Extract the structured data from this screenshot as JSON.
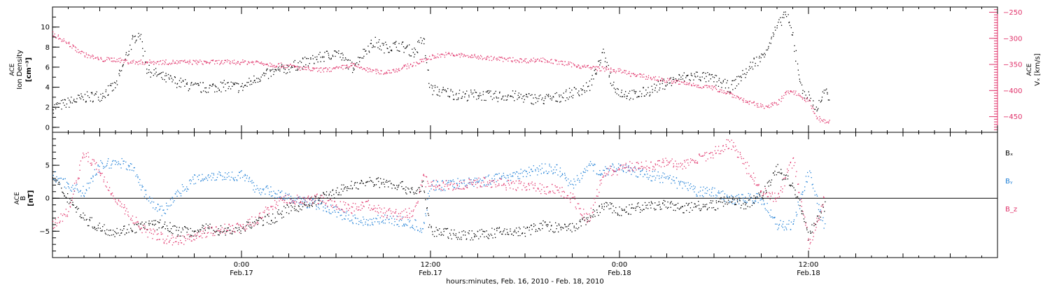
{
  "colors": {
    "black": "#000000",
    "blue": "#1f7fd6",
    "pink": "#e0326a"
  },
  "xaxis": {
    "title": "hours:minutes, Feb. 16, 2010 - Feb. 18, 2010",
    "ticks": [
      {
        "time": "0:00",
        "date": "Feb.17",
        "hour": 24
      },
      {
        "time": "12:00",
        "date": "Feb.17",
        "hour": 36
      },
      {
        "time": "0:00",
        "date": "Feb.18",
        "hour": 48
      },
      {
        "time": "12:00",
        "date": "Feb.18",
        "hour": 60
      }
    ]
  },
  "chart_data": [
    {
      "type": "scatter",
      "panel": "top",
      "ylabel_left": [
        "ACE",
        "Ion Density",
        "[cm⁻³]"
      ],
      "ylabel_right": [
        "ACE",
        "Vₓ [km/s]"
      ],
      "x_range_hours": [
        12,
        72
      ],
      "ylim_left": [
        -0.5,
        12
      ],
      "ylim_right": [
        -480,
        -240
      ],
      "yticks_left": [
        "0",
        "2",
        "4",
        "6",
        "8",
        "10"
      ],
      "yticks_right": [
        "-250",
        "-300",
        "-350",
        "-400",
        "-450"
      ],
      "series": [
        {
          "label": "Ion Density",
          "axis": "left",
          "color": "black",
          "x": [
            12,
            13,
            14,
            15,
            16,
            17,
            17.5,
            18,
            19,
            20,
            21,
            22,
            23,
            24,
            25,
            26,
            27,
            28,
            29,
            30,
            31,
            32,
            32.5,
            33,
            34,
            35,
            35.5,
            36,
            37,
            38,
            39,
            40,
            41,
            42,
            43,
            44,
            45,
            46,
            47,
            47.5,
            48,
            49,
            50,
            51,
            52,
            53,
            54,
            55,
            56,
            56.5,
            57,
            58,
            58.5,
            59,
            59.5,
            60,
            60.5,
            61,
            61.3
          ],
          "y": [
            2.0,
            2.5,
            3.0,
            3.2,
            4.2,
            8.5,
            9.5,
            5.8,
            5.0,
            4.5,
            4.0,
            4.0,
            4.2,
            4.0,
            5.0,
            5.5,
            6.0,
            6.5,
            7.0,
            7.5,
            6.0,
            8.0,
            8.5,
            8.0,
            8.2,
            7.5,
            9.0,
            3.8,
            3.5,
            3.2,
            3.3,
            3.1,
            3.2,
            3.0,
            2.8,
            3.0,
            3.5,
            4.0,
            7.5,
            4.5,
            3.5,
            3.2,
            3.8,
            4.5,
            5.0,
            5.2,
            4.8,
            4.0,
            5.5,
            6.5,
            7.0,
            10.0,
            11.5,
            9.0,
            4.0,
            3.0,
            1.8,
            3.5,
            3.0
          ]
        },
        {
          "label": "Vₓ",
          "axis": "right",
          "color": "pink",
          "x": [
            12,
            13,
            14,
            15,
            16,
            17,
            18,
            19,
            20,
            21,
            22,
            23,
            24,
            25,
            26,
            27,
            28,
            29,
            30,
            31,
            32,
            33,
            34,
            35,
            36,
            37,
            38,
            39,
            40,
            41,
            42,
            43,
            44,
            45,
            46,
            47,
            48,
            49,
            50,
            51,
            52,
            53,
            54,
            55,
            56,
            57,
            58,
            58.5,
            59,
            60,
            60.5,
            61,
            61.3
          ],
          "y": [
            -290,
            -310,
            -330,
            -340,
            -340,
            -345,
            -345,
            -345,
            -345,
            -345,
            -345,
            -345,
            -345,
            -345,
            -350,
            -352,
            -358,
            -360,
            -358,
            -350,
            -360,
            -365,
            -358,
            -348,
            -335,
            -330,
            -332,
            -335,
            -338,
            -340,
            -342,
            -340,
            -345,
            -350,
            -355,
            -358,
            -362,
            -370,
            -375,
            -380,
            -385,
            -390,
            -395,
            -405,
            -420,
            -430,
            -425,
            -405,
            -400,
            -420,
            -450,
            -460,
            -458
          ]
        }
      ]
    },
    {
      "type": "scatter",
      "panel": "bottom",
      "ylabel_left": [
        "ACE",
        "B",
        "[nT]"
      ],
      "x_range_hours": [
        12,
        72
      ],
      "ylim": [
        -9,
        10
      ],
      "yticks": [
        "5",
        "0",
        "-5"
      ],
      "legend_position": "right",
      "series": [
        {
          "name": "Bₓ",
          "color": "black",
          "x": [
            12,
            13,
            14,
            15,
            16,
            17,
            18,
            19,
            20,
            21,
            22,
            23,
            24,
            25,
            26,
            27,
            28,
            29,
            30,
            31,
            32,
            33,
            34,
            35,
            35.5,
            36,
            37,
            38,
            39,
            40,
            41,
            42,
            43,
            44,
            45,
            46,
            47,
            48,
            49,
            50,
            51,
            52,
            53,
            54,
            55,
            56,
            57,
            58,
            59,
            60,
            61
          ],
          "y": [
            3,
            0,
            -3,
            -4.5,
            -5,
            -4.5,
            -4,
            -4,
            -5,
            -5,
            -4.5,
            -5,
            -4.5,
            -3.5,
            -3,
            -1.5,
            -1,
            0,
            1,
            2,
            2.5,
            2.5,
            2,
            1,
            2,
            -5,
            -5.2,
            -5.5,
            -5.5,
            -5.2,
            -5,
            -5,
            -4,
            -4.5,
            -4.5,
            -3,
            -1,
            -2,
            -1.5,
            -1,
            -1,
            -1.5,
            -1,
            -1,
            0,
            -1,
            0.5,
            4.5,
            2,
            -5.5,
            -1
          ]
        },
        {
          "name": "Bᵧ",
          "color": "blue",
          "x": [
            12,
            13,
            14,
            15,
            16,
            17,
            18,
            19,
            20,
            21,
            22,
            23,
            24,
            25,
            26,
            27,
            28,
            29,
            30,
            31,
            32,
            33,
            34,
            35,
            35.5,
            36,
            37,
            38,
            39,
            40,
            41,
            42,
            43,
            44,
            45,
            46,
            47,
            48,
            49,
            50,
            51,
            52,
            53,
            54,
            55,
            56,
            57,
            58,
            59,
            60,
            61
          ],
          "y": [
            3.5,
            2,
            1,
            5,
            5.5,
            5,
            0,
            -2,
            1,
            3,
            3.5,
            3.5,
            3.5,
            1.5,
            1,
            0,
            -0.5,
            -1,
            -2,
            -3,
            -3.5,
            -3,
            -3.5,
            -4,
            -4.5,
            2,
            2,
            2.5,
            2.5,
            3,
            3.5,
            4,
            4.5,
            4.5,
            2,
            5,
            4,
            5,
            4,
            3.5,
            3,
            2,
            1,
            1,
            0,
            0,
            0,
            -4,
            -4,
            4,
            -4.5
          ]
        },
        {
          "name": "B_z",
          "color": "pink",
          "x": [
            12,
            13,
            14,
            15,
            16,
            17,
            18,
            19,
            20,
            21,
            22,
            23,
            24,
            25,
            26,
            27,
            28,
            29,
            30,
            31,
            32,
            33,
            34,
            35,
            35.5,
            36,
            37,
            38,
            39,
            40,
            41,
            42,
            43,
            44,
            45,
            46,
            47,
            48,
            49,
            50,
            51,
            52,
            53,
            54,
            55,
            56,
            57,
            58,
            59,
            60,
            61
          ],
          "y": [
            -4,
            -2,
            7,
            4,
            0,
            -3,
            -5,
            -6,
            -6.5,
            -5.5,
            -5,
            -4.5,
            -4.5,
            -3,
            -1,
            0,
            -0.5,
            0,
            -1,
            -1.5,
            -1,
            -2,
            -2.5,
            -2,
            3,
            2,
            2,
            2,
            2.5,
            2.5,
            2,
            2,
            1.5,
            1.5,
            0,
            -3.5,
            4,
            4.5,
            5,
            5,
            5.5,
            5,
            6,
            7,
            8.5,
            5,
            1,
            0,
            6,
            -7,
            0
          ]
        }
      ]
    }
  ]
}
